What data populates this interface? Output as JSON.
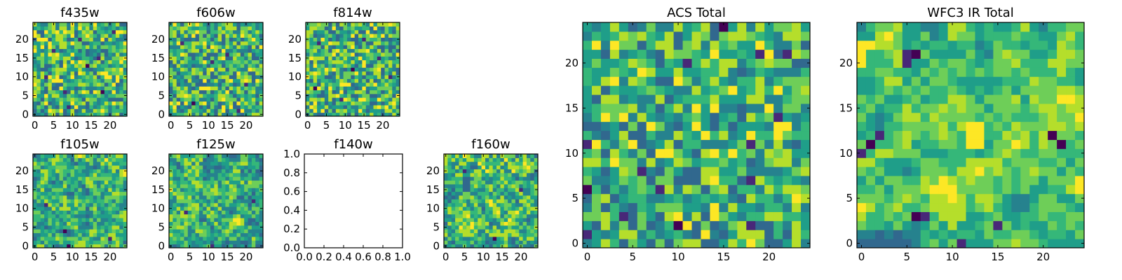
{
  "chart_data": [
    {
      "type": "heatmap",
      "title": "f435w",
      "n": 25,
      "xticks": [
        "0",
        "5",
        "10",
        "15",
        "20"
      ],
      "yticks": [
        "0",
        "5",
        "10",
        "15",
        "20"
      ],
      "seed": 11,
      "smooth": 0,
      "outliers": [
        [
          8,
          6
        ],
        [
          18,
          6
        ],
        [
          5,
          17
        ],
        [
          14,
          13
        ],
        [
          21,
          22
        ],
        [
          3,
          10
        ],
        [
          12,
          20
        ],
        [
          9,
          2
        ],
        [
          17,
          15
        ]
      ]
    },
    {
      "type": "heatmap",
      "title": "f606w",
      "n": 25,
      "xticks": [
        "0",
        "5",
        "10",
        "15",
        "20"
      ],
      "yticks": [
        "0",
        "5",
        "10",
        "15",
        "20"
      ],
      "seed": 23,
      "smooth": 0,
      "outliers": [
        [
          6,
          3
        ],
        [
          15,
          16
        ],
        [
          20,
          8
        ],
        [
          11,
          14
        ],
        [
          3,
          19
        ],
        [
          18,
          1
        ]
      ]
    },
    {
      "type": "heatmap",
      "title": "f814w",
      "n": 25,
      "xticks": [
        "0",
        "5",
        "10",
        "15",
        "20"
      ],
      "yticks": [
        "0",
        "5",
        "10",
        "15",
        "20"
      ],
      "seed": 37,
      "smooth": 0,
      "outliers": [
        [
          3,
          19
        ],
        [
          15,
          20
        ],
        [
          22,
          10
        ],
        [
          9,
          4
        ],
        [
          12,
          12
        ],
        [
          19,
          15
        ],
        [
          2,
          7
        ]
      ]
    },
    {
      "type": "heatmap",
      "title": "f105w",
      "n": 25,
      "xticks": [
        "0",
        "5",
        "10",
        "15",
        "20"
      ],
      "yticks": [
        "0",
        "5",
        "10",
        "15",
        "20"
      ],
      "seed": 41,
      "smooth": 1,
      "outliers": [
        [
          8,
          4
        ],
        [
          3,
          11
        ],
        [
          9,
          0
        ],
        [
          20,
          2
        ]
      ]
    },
    {
      "type": "heatmap",
      "title": "f125w",
      "n": 25,
      "xticks": [
        "0",
        "5",
        "10",
        "15",
        "20"
      ],
      "yticks": [
        "0",
        "5",
        "10",
        "15",
        "20"
      ],
      "seed": 53,
      "smooth": 1,
      "outliers": [
        [
          22,
          12
        ],
        [
          11,
          0
        ],
        [
          4,
          9
        ]
      ]
    },
    {
      "type": "empty",
      "title": "f140w",
      "xticks": [
        "0.0",
        "0.2",
        "0.4",
        "0.6",
        "0.8",
        "1.0"
      ],
      "yticks": [
        "0.0",
        "0.2",
        "0.4",
        "0.6",
        "0.8",
        "1.0"
      ],
      "xlim": [
        0,
        1
      ],
      "ylim": [
        0,
        1
      ]
    },
    {
      "type": "heatmap",
      "title": "f160w",
      "n": 25,
      "xticks": [
        "0",
        "5",
        "10",
        "15",
        "20"
      ],
      "yticks": [
        "0",
        "5",
        "10",
        "15",
        "20"
      ],
      "seed": 67,
      "smooth": 1,
      "outliers": [
        [
          5,
          20
        ],
        [
          13,
          2
        ],
        [
          20,
          15
        ]
      ]
    },
    {
      "type": "heatmap",
      "title": "ACS Total",
      "n": 25,
      "xticks": [
        "0",
        "5",
        "10",
        "15",
        "20"
      ],
      "yticks": [
        "0",
        "5",
        "10",
        "15",
        "20"
      ],
      "seed": 79,
      "smooth": 0,
      "outliers": [
        [
          15,
          24
        ],
        [
          19,
          21
        ],
        [
          22,
          21
        ],
        [
          11,
          20
        ],
        [
          21,
          14
        ],
        [
          18,
          11
        ],
        [
          0,
          11
        ],
        [
          6,
          8
        ],
        [
          8,
          6
        ],
        [
          18,
          7
        ],
        [
          10,
          2
        ],
        [
          18,
          2
        ],
        [
          4,
          3
        ],
        [
          0,
          6
        ],
        [
          0,
          1
        ]
      ]
    },
    {
      "type": "heatmap",
      "title": "WFC3 IR Total",
      "n": 25,
      "xticks": [
        "0",
        "5",
        "10",
        "15",
        "20"
      ],
      "yticks": [
        "0",
        "5",
        "10",
        "15",
        "20"
      ],
      "seed": 97,
      "smooth": 2,
      "outliers": [
        [
          5,
          21
        ],
        [
          6,
          21
        ],
        [
          5,
          20
        ],
        [
          2,
          12
        ],
        [
          1,
          11
        ],
        [
          0,
          10
        ],
        [
          21,
          12
        ],
        [
          22,
          11
        ],
        [
          11,
          0
        ],
        [
          15,
          2
        ],
        [
          6,
          3
        ],
        [
          7,
          3
        ]
      ],
      "bright": [
        [
          12,
          12
        ],
        [
          13,
          12
        ],
        [
          12,
          13
        ],
        [
          13,
          13
        ],
        [
          12,
          11
        ],
        [
          13,
          11
        ],
        [
          0,
          22
        ],
        [
          0,
          21
        ],
        [
          0,
          20
        ],
        [
          1,
          22
        ]
      ]
    }
  ]
}
